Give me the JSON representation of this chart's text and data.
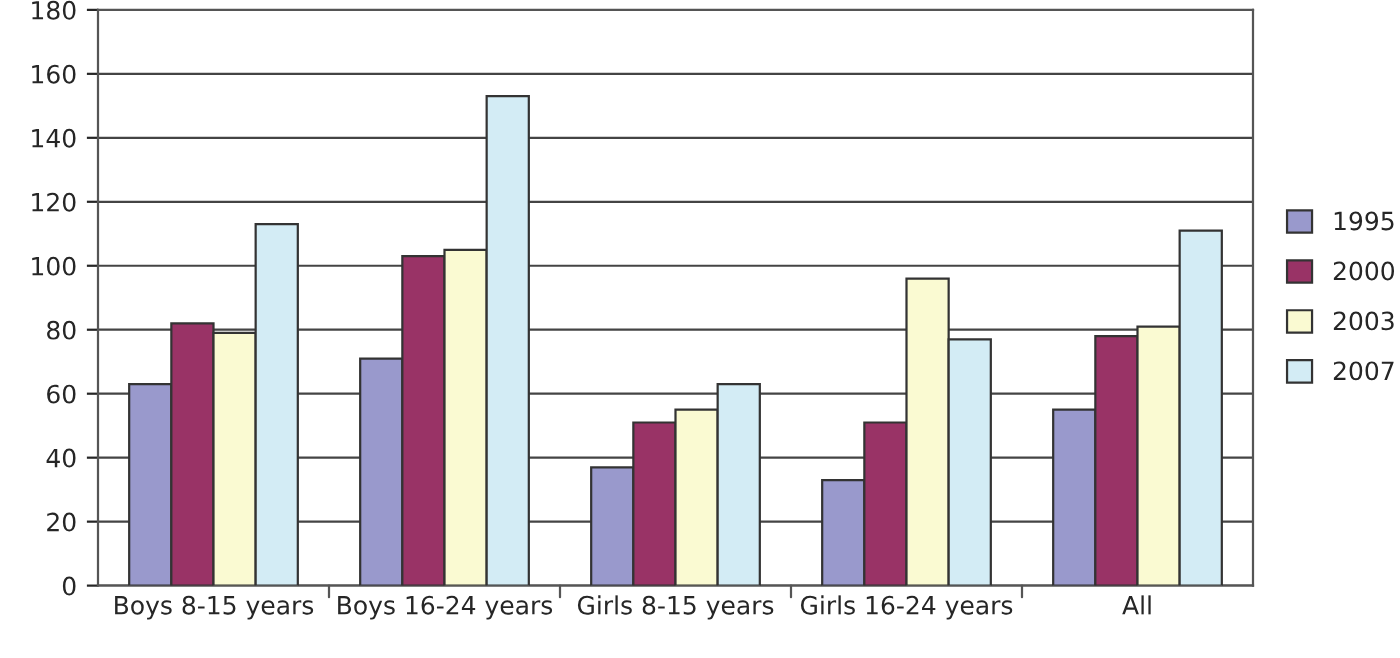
{
  "chart_data": {
    "type": "bar",
    "categories": [
      "Boys 8-15 years",
      "Boys 16-24 years",
      "Girls 8-15 years",
      "Girls 16-24 years",
      "All"
    ],
    "series": [
      {
        "name": "1995",
        "color": "#9999cc",
        "values": [
          63,
          71,
          37,
          33,
          55
        ]
      },
      {
        "name": "2000",
        "color": "#993366",
        "values": [
          82,
          103,
          51,
          51,
          78
        ]
      },
      {
        "name": "2003",
        "color": "#fafad2",
        "values": [
          79,
          105,
          55,
          96,
          81
        ]
      },
      {
        "name": "2007",
        "color": "#d3ecf5",
        "values": [
          113,
          153,
          63,
          77,
          111
        ]
      }
    ],
    "ylim": [
      0,
      180
    ],
    "yticks": [
      0,
      20,
      40,
      60,
      80,
      100,
      120,
      140,
      160,
      180
    ],
    "grid": "y",
    "legend": "right"
  }
}
